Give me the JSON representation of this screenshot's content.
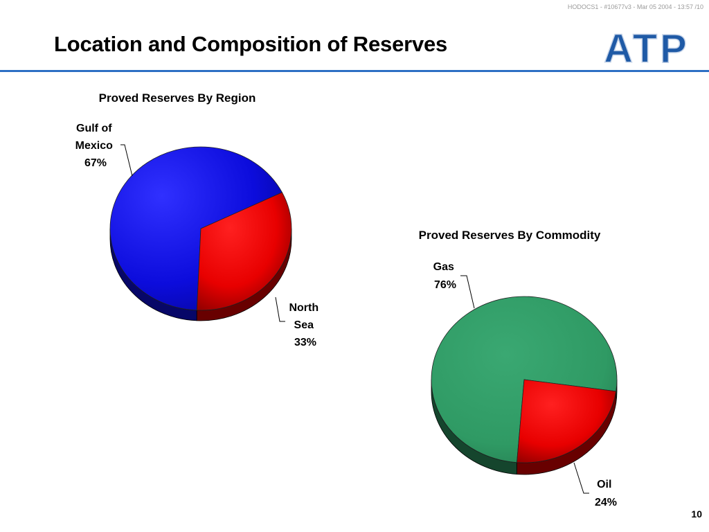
{
  "header": {
    "doc_id": "HODOCS1 - #10677v3 - Mar 05 2004 - 13:57 /10"
  },
  "slide": {
    "title": "Location and Composition of Reserves",
    "page_number": "10"
  },
  "logo": {
    "text": "ATP",
    "color": "#1f5aa6"
  },
  "colors": {
    "rule": "#2d6fc4",
    "blue": "#1010e8",
    "red": "#e80000",
    "green": "#2f9a64"
  },
  "chart_data": [
    {
      "type": "pie",
      "title": "Proved Reserves By Region",
      "slices": [
        {
          "label": [
            "Gulf of",
            "Mexico",
            "67%"
          ],
          "value": 67,
          "color": "#1010e8"
        },
        {
          "label": [
            "North",
            "Sea",
            "33%"
          ],
          "value": 33,
          "color": "#e80000"
        }
      ]
    },
    {
      "type": "pie",
      "title": "Proved Reserves By Commodity",
      "slices": [
        {
          "label": [
            "Gas",
            "76%"
          ],
          "value": 76,
          "color": "#2f9a64"
        },
        {
          "label": [
            "Oil",
            "24%"
          ],
          "value": 24,
          "color": "#e80000"
        }
      ]
    }
  ]
}
